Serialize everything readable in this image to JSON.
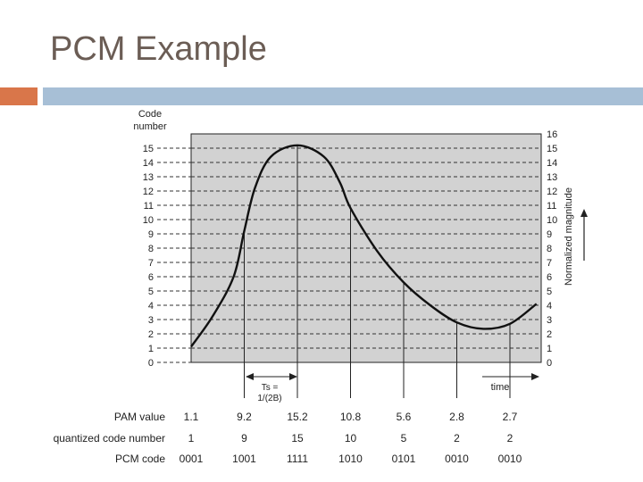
{
  "slide": {
    "title": "PCM Example",
    "accent_color": "#d9764a",
    "bar_color": "#a7bfd6"
  },
  "figure": {
    "code_axis_label": [
      "Code",
      "number"
    ],
    "right_axis_label": "Normalized magnitude",
    "ts_label_line1": "Ts =",
    "ts_label_line2": "1/(2B)",
    "time_label": "time",
    "code_levels": [
      "0",
      "1",
      "2",
      "3",
      "4",
      "5",
      "6",
      "7",
      "8",
      "9",
      "10",
      "11",
      "12",
      "13",
      "14",
      "15"
    ],
    "magnitude_levels": [
      "0",
      "1",
      "2",
      "3",
      "4",
      "5",
      "6",
      "7",
      "8",
      "9",
      "10",
      "11",
      "12",
      "13",
      "14",
      "15",
      "16"
    ],
    "rows": {
      "pam_label": "PAM value",
      "quantized_label": "quantized code number",
      "pcm_label": "PCM code"
    },
    "samples": [
      {
        "pam": "1.1",
        "code": "1",
        "pcm": "0001"
      },
      {
        "pam": "9.2",
        "code": "9",
        "pcm": "1001"
      },
      {
        "pam": "15.2",
        "code": "15",
        "pcm": "1111"
      },
      {
        "pam": "10.8",
        "code": "10",
        "pcm": "1010"
      },
      {
        "pam": "5.6",
        "code": "5",
        "pcm": "0101"
      },
      {
        "pam": "2.8",
        "code": "2",
        "pcm": "0010"
      },
      {
        "pam": "2.7",
        "code": "2",
        "pcm": "0010"
      }
    ],
    "signal_shape": [
      [
        0,
        1.1
      ],
      [
        0.4,
        3.2
      ],
      [
        0.8,
        6.0
      ],
      [
        1.0,
        9.2
      ],
      [
        1.2,
        12.2
      ],
      [
        1.5,
        14.4
      ],
      [
        2.0,
        15.2
      ],
      [
        2.5,
        14.4
      ],
      [
        2.8,
        12.6
      ],
      [
        3.0,
        10.8
      ],
      [
        3.5,
        7.8
      ],
      [
        4.0,
        5.6
      ],
      [
        4.5,
        4.0
      ],
      [
        5.0,
        2.8
      ],
      [
        5.5,
        2.35
      ],
      [
        6.0,
        2.7
      ],
      [
        6.5,
        4.1
      ]
    ]
  }
}
